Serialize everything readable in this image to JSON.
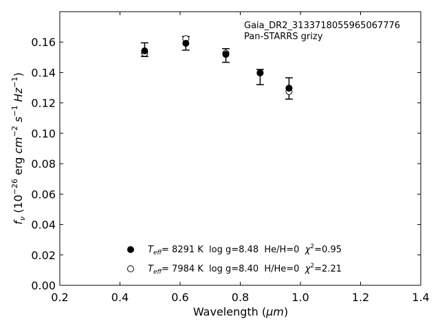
{
  "chart_data": {
    "type": "scatter",
    "xlabel_prefix": "Wavelength (",
    "xlabel_unit": "μm",
    "xlabel_suffix": ")",
    "ylabel": "fν (10⁻²⁶ erg cm⁻² s⁻¹ Hz⁻¹)",
    "xlim": [
      0.2,
      1.4
    ],
    "ylim": [
      0.0,
      0.18
    ],
    "x_ticks": [
      "0.2",
      "0.4",
      "0.6",
      "0.8",
      "1.0",
      "1.2",
      "1.4"
    ],
    "y_ticks": [
      "0.00",
      "0.02",
      "0.04",
      "0.06",
      "0.08",
      "0.10",
      "0.12",
      "0.14",
      "0.16"
    ],
    "annotation_lines": [
      "Gaia_DR2_3133718055965067776",
      "Pan-STARRS grizy"
    ],
    "observed": {
      "x": [
        0.482,
        0.619,
        0.752,
        0.866,
        0.962
      ],
      "y": [
        0.155,
        0.1592,
        0.1512,
        0.137,
        0.1295
      ],
      "yerr": [
        0.0045,
        0.0045,
        0.0045,
        0.005,
        0.007
      ]
    },
    "series": [
      {
        "marker": "filled",
        "label_teff": "8291 K",
        "label_rest": "  log g=8.48  He/H=0  ",
        "label_chi": "=0.95",
        "x": [
          0.482,
          0.619,
          0.752,
          0.866,
          0.962
        ],
        "y": [
          0.1542,
          0.1592,
          0.1519,
          0.1398,
          0.1297
        ]
      },
      {
        "marker": "open",
        "label_teff": "7984 K",
        "label_rest": "  log g=8.40  H/He=0  ",
        "label_chi": "=2.21",
        "x": [
          0.482,
          0.619,
          0.752,
          0.866,
          0.962
        ],
        "y": [
          0.1527,
          0.1622,
          0.1527,
          0.1397,
          0.1275
        ]
      }
    ],
    "grid": false,
    "legend_position": "lower-center"
  }
}
